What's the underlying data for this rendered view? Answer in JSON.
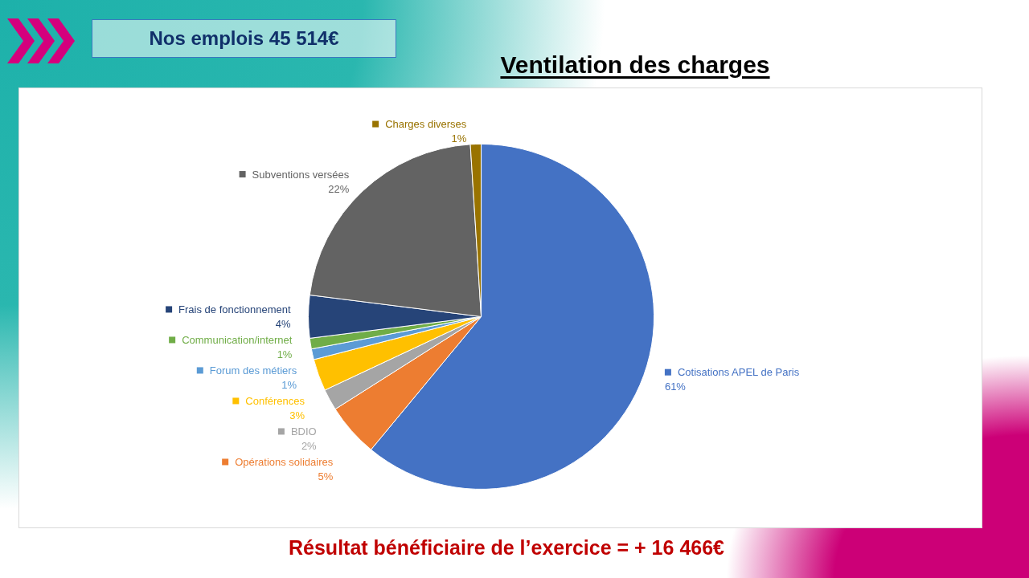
{
  "chart_data": {
    "type": "pie",
    "title": "Ventilation des charges",
    "subtitle": "Nos emplois 45 514€",
    "categories": [
      "Cotisations APEL de Paris",
      "Opérations solidaires",
      "BDIO",
      "Conférences",
      "Forum des métiers",
      "Communication/internet",
      "Frais de fonctionnement",
      "Subventions versées",
      "Charges diverses"
    ],
    "values": [
      61,
      5,
      2,
      3,
      1,
      1,
      4,
      22,
      1
    ],
    "value_labels": [
      "61%",
      "5%",
      "2%",
      "3%",
      "1%",
      "1%",
      "4%",
      "22%",
      "1%"
    ],
    "colors": [
      "#4472c4",
      "#ed7d31",
      "#a5a5a5",
      "#ffc000",
      "#5b9bd5",
      "#70ad47",
      "#264478",
      "#636363",
      "#997300"
    ],
    "legend": "left",
    "annotations": [
      "Résultat bénéficiaire de l’exercice = + 16 466€"
    ]
  }
}
